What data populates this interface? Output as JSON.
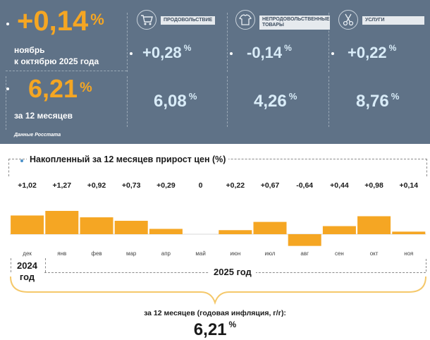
{
  "top": {
    "monthly": {
      "value": "+0,14",
      "unit": "%",
      "line1": "ноябрь",
      "line2": "к октябрю 2025 года"
    },
    "annual": {
      "value": "6,21",
      "unit": "%",
      "label": "за 12 месяцев"
    },
    "source": "Данные Росстата",
    "categories": [
      {
        "name": "ПРОДОВОЛЬСТВИЕ",
        "monthly": "+0,28",
        "annual": "6,08",
        "unit": "%",
        "icon": "shopping-cart-icon"
      },
      {
        "name": "НЕПРОДОВОЛЬСТВЕННЫЕ ТОВАРЫ",
        "monthly": "-0,14",
        "annual": "4,26",
        "unit": "%",
        "icon": "shirt-icon"
      },
      {
        "name": "УСЛУГИ",
        "monthly": "+0,22",
        "annual": "8,76",
        "unit": "%",
        "icon": "scissors-icon"
      }
    ]
  },
  "chart_data": {
    "type": "bar",
    "title": "Накопленный за 12 месяцев прирост цен (%)",
    "categories": [
      "дек",
      "янв",
      "фев",
      "мар",
      "апр",
      "май",
      "июн",
      "июл",
      "авг",
      "сен",
      "окт",
      "ноя"
    ],
    "values": [
      1.02,
      1.27,
      0.92,
      0.73,
      0.29,
      0,
      0.22,
      0.67,
      -0.64,
      0.44,
      0.98,
      0.14
    ],
    "labels": [
      "+1,02",
      "+1,27",
      "+0,92",
      "+0,73",
      "+0,29",
      "0",
      "+0,22",
      "+0,67",
      "-0,64",
      "+0,44",
      "+0,98",
      "+0,14"
    ],
    "year_2024": "2024",
    "year_2024_suffix": "год",
    "year_2025": "2025 год",
    "bar_color": "#f5a623",
    "summary_label": "за 12 месяцев (годовая инфляция, г/г):",
    "summary_value": "6,21",
    "summary_unit": "%"
  }
}
